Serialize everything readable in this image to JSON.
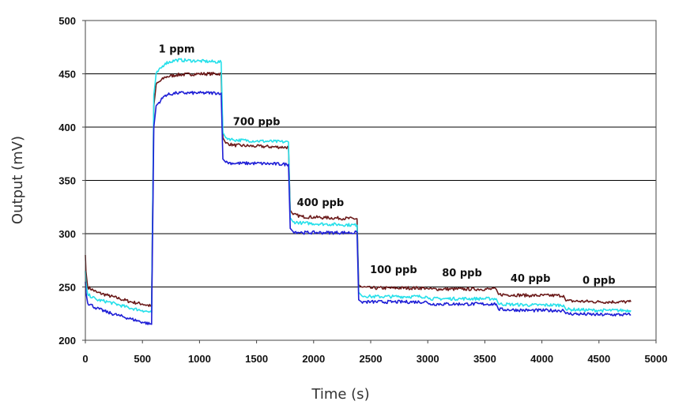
{
  "chart_data": {
    "type": "line",
    "title": "",
    "xlabel": "Time (s)",
    "ylabel": "Output (mV)",
    "xlim": [
      0,
      5000
    ],
    "ylim": [
      200,
      500
    ],
    "x_ticks": [
      "0",
      "500",
      "1000",
      "1500",
      "2000",
      "2500",
      "3000",
      "3500",
      "4000",
      "4500",
      "5000"
    ],
    "y_ticks": [
      "200",
      "250",
      "300",
      "350",
      "400",
      "450",
      "500"
    ],
    "grid": "horizontal",
    "legend": "none",
    "annotations": [
      {
        "text": "1 ppm",
        "x": 800,
        "y": 470
      },
      {
        "text": "700 ppb",
        "x": 1500,
        "y": 402
      },
      {
        "text": "400 ppb",
        "x": 2060,
        "y": 326
      },
      {
        "text": "100 ppb",
        "x": 2700,
        "y": 263
      },
      {
        "text": "80 ppb",
        "x": 3300,
        "y": 260
      },
      {
        "text": "40 ppb",
        "x": 3900,
        "y": 255
      },
      {
        "text": "0 ppb",
        "x": 4500,
        "y": 253
      }
    ],
    "series": [
      {
        "color": "#6b1a1a",
        "x": [
          0,
          5,
          20,
          100,
          200,
          300,
          400,
          500,
          580,
          600,
          620,
          700,
          800,
          1000,
          1190,
          1205,
          1230,
          1300,
          1500,
          1780,
          1795,
          1820,
          1900,
          2100,
          2380,
          2395,
          2420,
          2500,
          2700,
          2990,
          3010,
          3300,
          3600,
          3620,
          3900,
          4190,
          4210,
          4500,
          4780
        ],
        "y": [
          280,
          265,
          250,
          245,
          242,
          239,
          236,
          234,
          232,
          420,
          440,
          447,
          449,
          450,
          450,
          390,
          385,
          383,
          382,
          381,
          322,
          318,
          316,
          315,
          314,
          252,
          250,
          249,
          249,
          249,
          248,
          248,
          248,
          243,
          242,
          242,
          237,
          236,
          236
        ]
      },
      {
        "color": "#26e0ea",
        "x": [
          0,
          5,
          20,
          100,
          200,
          300,
          400,
          500,
          580,
          600,
          620,
          700,
          800,
          1000,
          1190,
          1205,
          1230,
          1300,
          1500,
          1780,
          1795,
          1820,
          1900,
          2100,
          2380,
          2395,
          2420,
          2500,
          2700,
          2990,
          3010,
          3300,
          3600,
          3620,
          3900,
          4190,
          4210,
          4500,
          4780
        ],
        "y": [
          265,
          255,
          243,
          238,
          236,
          233,
          230,
          228,
          226,
          430,
          450,
          460,
          463,
          462,
          461,
          395,
          390,
          388,
          387,
          386,
          315,
          311,
          310,
          309,
          308,
          245,
          242,
          241,
          241,
          241,
          239,
          239,
          239,
          234,
          233,
          233,
          229,
          228,
          228
        ]
      },
      {
        "color": "#1f1fd6",
        "x": [
          0,
          5,
          20,
          100,
          200,
          300,
          400,
          500,
          580,
          600,
          620,
          700,
          800,
          1000,
          1190,
          1205,
          1230,
          1300,
          1500,
          1780,
          1795,
          1820,
          1900,
          2100,
          2380,
          2395,
          2420,
          2500,
          2700,
          2990,
          3010,
          3300,
          3600,
          3620,
          3900,
          4190,
          4210,
          4500,
          4780
        ],
        "y": [
          255,
          245,
          235,
          230,
          226,
          223,
          220,
          217,
          215,
          400,
          420,
          430,
          432,
          432,
          432,
          370,
          367,
          366,
          366,
          365,
          305,
          302,
          301,
          301,
          301,
          238,
          236,
          236,
          236,
          236,
          234,
          234,
          234,
          229,
          228,
          228,
          225,
          224,
          224
        ]
      }
    ]
  }
}
